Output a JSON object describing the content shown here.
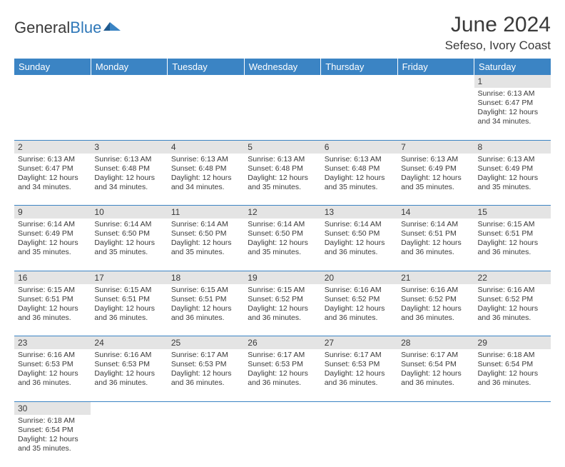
{
  "brand": {
    "name_a": "General",
    "name_b": "Blue"
  },
  "header": {
    "title": "June 2024",
    "location": "Sefeso, Ivory Coast"
  },
  "colors": {
    "header_bg": "#3b84c4",
    "header_text": "#ffffff",
    "daynum_bg": "#e4e4e4",
    "row_border": "#3b84c4",
    "text": "#3a3a3a"
  },
  "dayHeaders": [
    "Sunday",
    "Monday",
    "Tuesday",
    "Wednesday",
    "Thursday",
    "Friday",
    "Saturday"
  ],
  "weeks": [
    [
      {
        "n": "",
        "sr": "",
        "ss": "",
        "dl": ""
      },
      {
        "n": "",
        "sr": "",
        "ss": "",
        "dl": ""
      },
      {
        "n": "",
        "sr": "",
        "ss": "",
        "dl": ""
      },
      {
        "n": "",
        "sr": "",
        "ss": "",
        "dl": ""
      },
      {
        "n": "",
        "sr": "",
        "ss": "",
        "dl": ""
      },
      {
        "n": "",
        "sr": "",
        "ss": "",
        "dl": ""
      },
      {
        "n": "1",
        "sr": "Sunrise: 6:13 AM",
        "ss": "Sunset: 6:47 PM",
        "dl": "Daylight: 12 hours and 34 minutes."
      }
    ],
    [
      {
        "n": "2",
        "sr": "Sunrise: 6:13 AM",
        "ss": "Sunset: 6:47 PM",
        "dl": "Daylight: 12 hours and 34 minutes."
      },
      {
        "n": "3",
        "sr": "Sunrise: 6:13 AM",
        "ss": "Sunset: 6:48 PM",
        "dl": "Daylight: 12 hours and 34 minutes."
      },
      {
        "n": "4",
        "sr": "Sunrise: 6:13 AM",
        "ss": "Sunset: 6:48 PM",
        "dl": "Daylight: 12 hours and 34 minutes."
      },
      {
        "n": "5",
        "sr": "Sunrise: 6:13 AM",
        "ss": "Sunset: 6:48 PM",
        "dl": "Daylight: 12 hours and 35 minutes."
      },
      {
        "n": "6",
        "sr": "Sunrise: 6:13 AM",
        "ss": "Sunset: 6:48 PM",
        "dl": "Daylight: 12 hours and 35 minutes."
      },
      {
        "n": "7",
        "sr": "Sunrise: 6:13 AM",
        "ss": "Sunset: 6:49 PM",
        "dl": "Daylight: 12 hours and 35 minutes."
      },
      {
        "n": "8",
        "sr": "Sunrise: 6:13 AM",
        "ss": "Sunset: 6:49 PM",
        "dl": "Daylight: 12 hours and 35 minutes."
      }
    ],
    [
      {
        "n": "9",
        "sr": "Sunrise: 6:14 AM",
        "ss": "Sunset: 6:49 PM",
        "dl": "Daylight: 12 hours and 35 minutes."
      },
      {
        "n": "10",
        "sr": "Sunrise: 6:14 AM",
        "ss": "Sunset: 6:50 PM",
        "dl": "Daylight: 12 hours and 35 minutes."
      },
      {
        "n": "11",
        "sr": "Sunrise: 6:14 AM",
        "ss": "Sunset: 6:50 PM",
        "dl": "Daylight: 12 hours and 35 minutes."
      },
      {
        "n": "12",
        "sr": "Sunrise: 6:14 AM",
        "ss": "Sunset: 6:50 PM",
        "dl": "Daylight: 12 hours and 35 minutes."
      },
      {
        "n": "13",
        "sr": "Sunrise: 6:14 AM",
        "ss": "Sunset: 6:50 PM",
        "dl": "Daylight: 12 hours and 36 minutes."
      },
      {
        "n": "14",
        "sr": "Sunrise: 6:14 AM",
        "ss": "Sunset: 6:51 PM",
        "dl": "Daylight: 12 hours and 36 minutes."
      },
      {
        "n": "15",
        "sr": "Sunrise: 6:15 AM",
        "ss": "Sunset: 6:51 PM",
        "dl": "Daylight: 12 hours and 36 minutes."
      }
    ],
    [
      {
        "n": "16",
        "sr": "Sunrise: 6:15 AM",
        "ss": "Sunset: 6:51 PM",
        "dl": "Daylight: 12 hours and 36 minutes."
      },
      {
        "n": "17",
        "sr": "Sunrise: 6:15 AM",
        "ss": "Sunset: 6:51 PM",
        "dl": "Daylight: 12 hours and 36 minutes."
      },
      {
        "n": "18",
        "sr": "Sunrise: 6:15 AM",
        "ss": "Sunset: 6:51 PM",
        "dl": "Daylight: 12 hours and 36 minutes."
      },
      {
        "n": "19",
        "sr": "Sunrise: 6:15 AM",
        "ss": "Sunset: 6:52 PM",
        "dl": "Daylight: 12 hours and 36 minutes."
      },
      {
        "n": "20",
        "sr": "Sunrise: 6:16 AM",
        "ss": "Sunset: 6:52 PM",
        "dl": "Daylight: 12 hours and 36 minutes."
      },
      {
        "n": "21",
        "sr": "Sunrise: 6:16 AM",
        "ss": "Sunset: 6:52 PM",
        "dl": "Daylight: 12 hours and 36 minutes."
      },
      {
        "n": "22",
        "sr": "Sunrise: 6:16 AM",
        "ss": "Sunset: 6:52 PM",
        "dl": "Daylight: 12 hours and 36 minutes."
      }
    ],
    [
      {
        "n": "23",
        "sr": "Sunrise: 6:16 AM",
        "ss": "Sunset: 6:53 PM",
        "dl": "Daylight: 12 hours and 36 minutes."
      },
      {
        "n": "24",
        "sr": "Sunrise: 6:16 AM",
        "ss": "Sunset: 6:53 PM",
        "dl": "Daylight: 12 hours and 36 minutes."
      },
      {
        "n": "25",
        "sr": "Sunrise: 6:17 AM",
        "ss": "Sunset: 6:53 PM",
        "dl": "Daylight: 12 hours and 36 minutes."
      },
      {
        "n": "26",
        "sr": "Sunrise: 6:17 AM",
        "ss": "Sunset: 6:53 PM",
        "dl": "Daylight: 12 hours and 36 minutes."
      },
      {
        "n": "27",
        "sr": "Sunrise: 6:17 AM",
        "ss": "Sunset: 6:53 PM",
        "dl": "Daylight: 12 hours and 36 minutes."
      },
      {
        "n": "28",
        "sr": "Sunrise: 6:17 AM",
        "ss": "Sunset: 6:54 PM",
        "dl": "Daylight: 12 hours and 36 minutes."
      },
      {
        "n": "29",
        "sr": "Sunrise: 6:18 AM",
        "ss": "Sunset: 6:54 PM",
        "dl": "Daylight: 12 hours and 36 minutes."
      }
    ],
    [
      {
        "n": "30",
        "sr": "Sunrise: 6:18 AM",
        "ss": "Sunset: 6:54 PM",
        "dl": "Daylight: 12 hours and 35 minutes."
      },
      {
        "n": "",
        "sr": "",
        "ss": "",
        "dl": ""
      },
      {
        "n": "",
        "sr": "",
        "ss": "",
        "dl": ""
      },
      {
        "n": "",
        "sr": "",
        "ss": "",
        "dl": ""
      },
      {
        "n": "",
        "sr": "",
        "ss": "",
        "dl": ""
      },
      {
        "n": "",
        "sr": "",
        "ss": "",
        "dl": ""
      },
      {
        "n": "",
        "sr": "",
        "ss": "",
        "dl": ""
      }
    ]
  ]
}
